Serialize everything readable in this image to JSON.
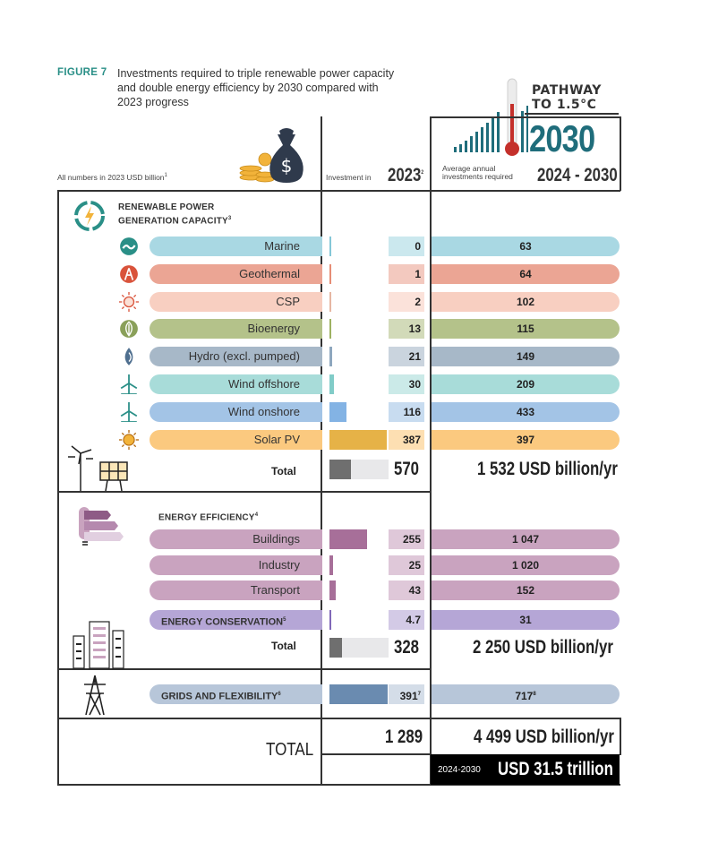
{
  "figure": {
    "label": "FIGURE 7",
    "title": "Investments required to triple renewable power capacity and double energy efficiency by 2030 compared with 2023 progress"
  },
  "badge": {
    "line1": "PATHWAY",
    "line2": "TO 1.5°C",
    "year": "2030"
  },
  "headers": {
    "units_note": "All numbers in 2023 USD billion",
    "units_sup": "1",
    "investment_in": "Investment in",
    "year_2023": "2023",
    "year_2023_sup": "2",
    "avg_annual_line1": "Average annual",
    "avg_annual_line2": "investments required",
    "period": "2024 - 2030"
  },
  "colors": {
    "renewable_icon": "#2a8f87",
    "frame": "#333333",
    "pathway_accent": "#1f6d7b",
    "thermometer_red": "#c4302b"
  },
  "chart_data": {
    "type": "bar",
    "units": "2023 USD billion",
    "sections": [
      {
        "id": "renewable",
        "title_line1": "RENEWABLE POWER",
        "title_line2": "GENERATION CAPACITY",
        "footnote": "3",
        "rows": [
          {
            "label": "Marine",
            "icon": "wave-icon",
            "v2023": 0,
            "d2023": "0",
            "v2030": 63,
            "d2030": "63",
            "color": "#a9d8e3"
          },
          {
            "label": "Geothermal",
            "icon": "geothermal-icon",
            "v2023": 1,
            "d2023": "1",
            "v2030": 64,
            "d2030": "64",
            "color": "#eba594"
          },
          {
            "label": "CSP",
            "icon": "sun-outline-icon",
            "v2023": 2,
            "d2023": "2",
            "v2030": 102,
            "d2030": "102",
            "color": "#f8cfc1"
          },
          {
            "label": "Bioenergy",
            "icon": "leaf-icon",
            "v2023": 13,
            "d2023": "13",
            "v2030": 115,
            "d2030": "115",
            "color": "#b4c28a"
          },
          {
            "label": "Hydro (excl. pumped)",
            "icon": "water-drop-icon",
            "v2023": 21,
            "d2023": "21",
            "v2030": 149,
            "d2030": "149",
            "color": "#a7b8c8"
          },
          {
            "label": "Wind offshore",
            "icon": "wind-turbine-icon",
            "v2023": 30,
            "d2023": "30",
            "v2030": 209,
            "d2030": "209",
            "color": "#a8dcd9"
          },
          {
            "label": "Wind onshore",
            "icon": "wind-turbine-icon",
            "v2023": 116,
            "d2023": "116",
            "v2030": 433,
            "d2030": "433",
            "color": "#a3c4e6"
          },
          {
            "label": "Solar PV",
            "icon": "sun-icon",
            "v2023": 387,
            "d2023": "387",
            "v2030": 397,
            "d2030": "397",
            "color": "#fbc97f"
          }
        ],
        "total_label": "Total",
        "total_2023": 570,
        "total_2023_text": "570",
        "total_2030_text": "1 532 USD billion/yr",
        "total_color": "#6f6f6f"
      },
      {
        "id": "efficiency",
        "title_line1": "ENERGY EFFICIENCY",
        "title_line2": "",
        "footnote": "4",
        "rows": [
          {
            "label": "Buildings",
            "icon": "",
            "v2023": 255,
            "d2023": "255",
            "v2030": 1047,
            "d2030": "1 047",
            "color": "#c9a3bf",
            "bar_color": "#a76f99"
          },
          {
            "label": "Industry",
            "icon": "",
            "v2023": 25,
            "d2023": "25",
            "v2030": 1020,
            "d2030": "1 020",
            "color": "#c9a3bf",
            "bar_color": "#a76f99"
          },
          {
            "label": "Transport",
            "icon": "",
            "v2023": 43,
            "d2023": "43",
            "v2030": 152,
            "d2030": "152",
            "color": "#c9a3bf",
            "bar_color": "#a76f99"
          },
          {
            "label": "ENERGY CONSERVATION",
            "label_sup": "5",
            "icon": "",
            "v2023": 4.7,
            "d2023": "4.7",
            "v2030": 31,
            "d2030": "31",
            "color": "#b5a6d6",
            "bar_color": "#8068b8",
            "bold": true
          }
        ],
        "total_label": "Total",
        "total_2023": 328,
        "total_2023_text": "328",
        "total_2030_text": "2 250 USD billion/yr",
        "total_color": "#6f6f6f"
      },
      {
        "id": "grids",
        "title_line1": "",
        "title_line2": "",
        "rows": [
          {
            "label": "GRIDS AND FLEXIBILITY",
            "label_sup": "6",
            "icon": "",
            "v2023": 391,
            "d2023": "391",
            "sup2023": "7",
            "v2030": 717,
            "d2030": "717",
            "sup2030": "8",
            "color": "#b7c6d9",
            "bar_color": "#6a8bb0",
            "bold": true
          }
        ]
      }
    ],
    "grand_total": {
      "label": "TOTAL",
      "total_2023_text": "1 289",
      "total_2030_text": "4 499 USD billion/yr",
      "period_small": "2024-2030",
      "cumulative_text": "USD 31.5 trillion"
    }
  }
}
